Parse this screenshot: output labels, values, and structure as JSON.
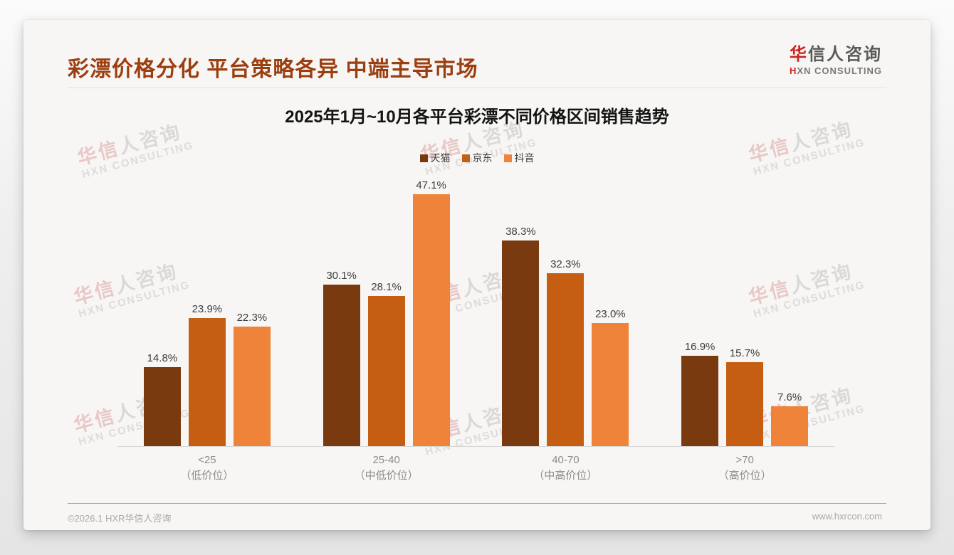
{
  "page": {
    "title": "彩漂价格分化 平台策略各异 中端主导市场",
    "logo": {
      "cn_red": "华",
      "cn_rest": "信人咨询",
      "en_red": "H",
      "en_rest": "XN CONSULTING"
    },
    "footer": {
      "left": "©2026.1 HXR华信人咨询",
      "right": "www.hxrcon.com"
    },
    "watermark": {
      "cn_red": "华信",
      "cn_gray": "人咨询",
      "en": "HXN CONSULTING"
    }
  },
  "chart_data": {
    "type": "bar",
    "title": "2025年1月~10月各平台彩漂不同价格区间销售趋势",
    "categories": [
      "<25",
      "25-40",
      "40-70",
      ">70"
    ],
    "category_sublabels": [
      "（低价位）",
      "（中低价位）",
      "（中高价位）",
      "（高价位）"
    ],
    "series": [
      {
        "name": "天猫",
        "color": "#7a3a10",
        "values": [
          14.8,
          30.1,
          38.3,
          16.9
        ]
      },
      {
        "name": "京东",
        "color": "#c55e13",
        "values": [
          23.9,
          28.1,
          32.3,
          15.7
        ]
      },
      {
        "name": "抖音",
        "color": "#ee8339",
        "values": [
          22.3,
          47.1,
          23.0,
          7.6
        ]
      }
    ],
    "value_suffix": "%",
    "ylim": [
      0,
      50
    ],
    "grid": false,
    "legend_position": "top"
  }
}
